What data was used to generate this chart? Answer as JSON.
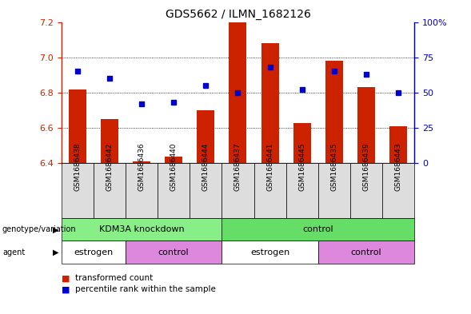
{
  "title": "GDS5662 / ILMN_1682126",
  "samples": [
    "GSM1686438",
    "GSM1686442",
    "GSM1686436",
    "GSM1686440",
    "GSM1686444",
    "GSM1686437",
    "GSM1686441",
    "GSM1686445",
    "GSM1686435",
    "GSM1686439",
    "GSM1686443"
  ],
  "transformed_count": [
    6.82,
    6.65,
    6.41,
    6.44,
    6.7,
    7.2,
    7.08,
    6.63,
    6.98,
    6.83,
    6.61
  ],
  "percentile_rank": [
    65,
    60,
    42,
    43,
    55,
    50,
    68,
    52,
    65,
    63,
    50
  ],
  "ylim_left": [
    6.4,
    7.2
  ],
  "ylim_right": [
    0,
    100
  ],
  "yticks_left": [
    6.4,
    6.6,
    6.8,
    7.0,
    7.2
  ],
  "yticks_right": [
    0,
    25,
    50,
    75,
    100
  ],
  "ytick_labels_right": [
    "0",
    "25",
    "50",
    "75",
    "100%"
  ],
  "bar_color": "#cc2200",
  "marker_color": "#0000cc",
  "bar_bottom": 6.4,
  "genotype_groups": [
    {
      "label": "KDM3A knockdown",
      "start": 0,
      "end": 4,
      "color": "#88ee88"
    },
    {
      "label": "control",
      "start": 5,
      "end": 10,
      "color": "#66dd66"
    }
  ],
  "agent_groups": [
    {
      "label": "estrogen",
      "start": 0,
      "end": 1,
      "color": "#ffffff"
    },
    {
      "label": "control",
      "start": 2,
      "end": 4,
      "color": "#dd88dd"
    },
    {
      "label": "estrogen",
      "start": 5,
      "end": 7,
      "color": "#ffffff"
    },
    {
      "label": "control",
      "start": 8,
      "end": 10,
      "color": "#dd88dd"
    }
  ],
  "grid_yticks": [
    6.6,
    6.8,
    7.0
  ],
  "bar_width": 0.55
}
